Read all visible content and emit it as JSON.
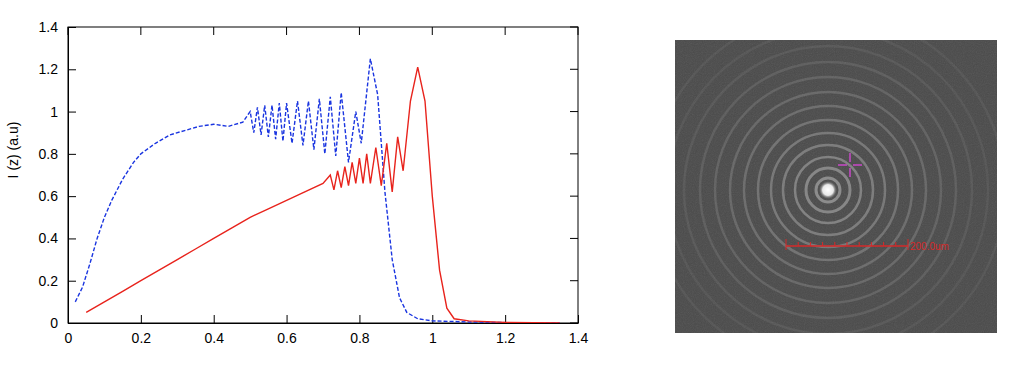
{
  "chart_data": {
    "type": "line",
    "y_label": "I (z) (a.u)",
    "xlim": [
      0,
      1.4
    ],
    "ylim": [
      0,
      1.4
    ],
    "xticks": [
      0,
      0.2,
      0.4,
      0.6,
      0.8,
      1,
      1.2,
      1.4
    ],
    "yticks": [
      0,
      0.2,
      0.4,
      0.6,
      0.8,
      1,
      1.2,
      1.4
    ],
    "series": [
      {
        "color": "#1a35e0",
        "line_style": "dashed",
        "x": [
          0.02,
          0.04,
          0.06,
          0.08,
          0.1,
          0.12,
          0.15,
          0.18,
          0.2,
          0.24,
          0.28,
          0.32,
          0.36,
          0.4,
          0.44,
          0.48,
          0.5,
          0.51,
          0.52,
          0.53,
          0.54,
          0.55,
          0.56,
          0.57,
          0.58,
          0.59,
          0.6,
          0.615,
          0.63,
          0.645,
          0.66,
          0.675,
          0.69,
          0.705,
          0.72,
          0.735,
          0.75,
          0.77,
          0.79,
          0.805,
          0.83,
          0.85,
          0.87,
          0.89,
          0.91,
          0.93,
          0.96,
          1.0,
          1.1,
          1.2,
          1.35
        ],
        "values": [
          0.1,
          0.17,
          0.28,
          0.4,
          0.5,
          0.58,
          0.68,
          0.76,
          0.8,
          0.85,
          0.89,
          0.91,
          0.93,
          0.94,
          0.93,
          0.95,
          1.0,
          0.9,
          1.02,
          0.89,
          1.03,
          0.88,
          1.03,
          0.87,
          1.04,
          0.86,
          1.04,
          0.85,
          1.05,
          0.84,
          1.05,
          0.82,
          1.06,
          0.8,
          1.07,
          0.79,
          1.09,
          0.76,
          1.0,
          0.85,
          1.25,
          1.08,
          0.62,
          0.3,
          0.12,
          0.05,
          0.02,
          0.01,
          0.005,
          0.002,
          0
        ]
      },
      {
        "color": "#e8231c",
        "line_style": "solid",
        "x": [
          0.05,
          0.1,
          0.15,
          0.2,
          0.25,
          0.3,
          0.35,
          0.4,
          0.45,
          0.5,
          0.55,
          0.6,
          0.65,
          0.7,
          0.72,
          0.73,
          0.74,
          0.75,
          0.76,
          0.77,
          0.78,
          0.79,
          0.8,
          0.81,
          0.82,
          0.83,
          0.845,
          0.86,
          0.875,
          0.89,
          0.905,
          0.92,
          0.94,
          0.96,
          0.98,
          1.0,
          1.02,
          1.04,
          1.06,
          1.1,
          1.2,
          1.35
        ],
        "values": [
          0.05,
          0.1,
          0.15,
          0.2,
          0.25,
          0.3,
          0.35,
          0.4,
          0.45,
          0.5,
          0.54,
          0.58,
          0.62,
          0.66,
          0.7,
          0.63,
          0.72,
          0.64,
          0.74,
          0.65,
          0.76,
          0.66,
          0.78,
          0.66,
          0.8,
          0.66,
          0.83,
          0.65,
          0.85,
          0.62,
          0.88,
          0.72,
          1.05,
          1.21,
          1.05,
          0.6,
          0.25,
          0.07,
          0.02,
          0.01,
          0.003,
          0
        ]
      }
    ]
  },
  "image": {
    "scale_bar_label": "200.0um"
  }
}
